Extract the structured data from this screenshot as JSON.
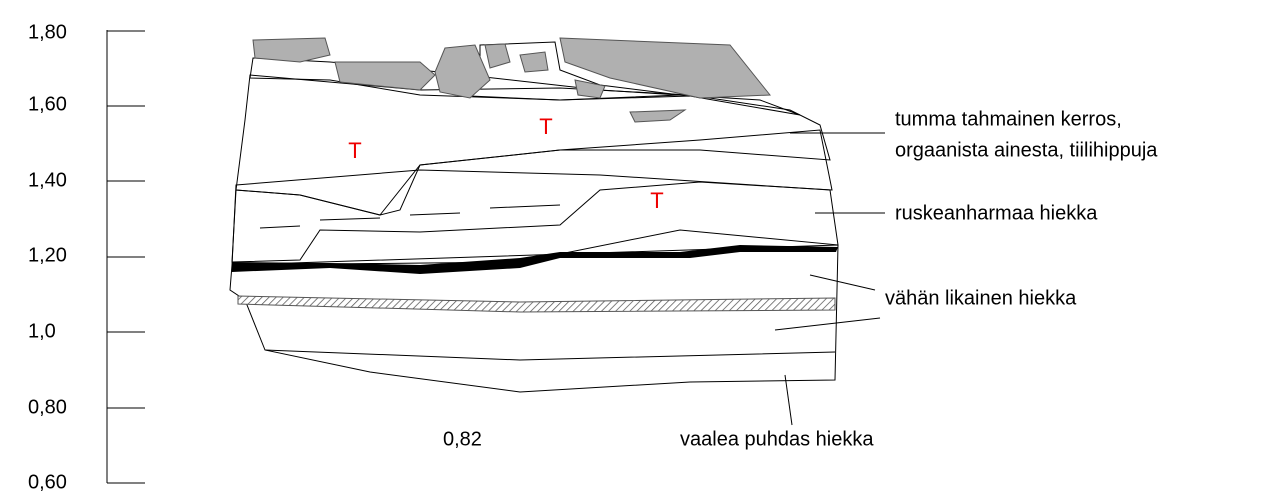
{
  "scale": {
    "labels": [
      "1,80",
      "1,60",
      "1,40",
      "1,20",
      "1,0",
      "0,80",
      "0,60"
    ]
  },
  "layers": [
    {
      "label": "tumma tahmainen kerros,"
    },
    {
      "label": "orgaanista ainesta, tiilihippuja"
    },
    {
      "label": "ruskeanharmaa hiekka"
    },
    {
      "label": "vähän likainen hiekka"
    },
    {
      "label": "vaalea puhdas hiekka"
    }
  ],
  "markers": [
    "T",
    "T",
    "T"
  ],
  "width_label": "0,82"
}
